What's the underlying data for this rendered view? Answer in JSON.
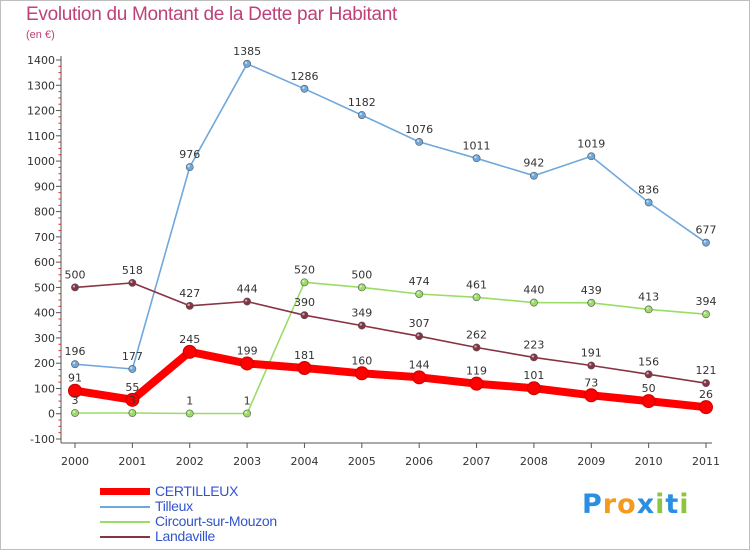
{
  "title": "Evolution du Montant de la Dette par Habitant",
  "subtitle": "(en €)",
  "logo": {
    "letters": [
      "P",
      "r",
      "o",
      "x",
      "i",
      "t",
      "i"
    ],
    "colors": [
      "#2a8fe0",
      "#f39a1f",
      "#f39a1f",
      "#2a8fe0",
      "#8cc63f",
      "#2a8fe0",
      "#8cc63f"
    ]
  },
  "chart_data": {
    "type": "line",
    "title": "Evolution du Montant de la Dette par Habitant",
    "subtitle": "(en €)",
    "xlabel": "",
    "ylabel": "",
    "x": [
      "2000",
      "2001",
      "2002",
      "2003",
      "2004",
      "2005",
      "2006",
      "2007",
      "2008",
      "2009",
      "2010",
      "2011"
    ],
    "ylim": [
      -100,
      1400
    ],
    "yticks": [
      "-100",
      "0",
      "100",
      "200",
      "300",
      "400",
      "500",
      "600",
      "700",
      "800",
      "900",
      "1000",
      "1100",
      "1200",
      "1300",
      "1400"
    ],
    "grid": false,
    "legend": "bottom-left",
    "series": [
      {
        "name": "CERTILLEUX",
        "color": "#ff0000",
        "values": [
          91,
          55,
          245,
          199,
          181,
          160,
          144,
          119,
          101,
          73,
          50,
          26
        ],
        "labels": [
          "91",
          "55",
          "245",
          "199",
          "181",
          "160",
          "144",
          "119",
          "101",
          "73",
          "50",
          "26"
        ]
      },
      {
        "name": "Tilleux",
        "color": "#6fa8dc",
        "values": [
          196,
          177,
          976,
          1385,
          1286,
          1182,
          1076,
          1011,
          942,
          1019,
          836,
          677
        ],
        "labels": [
          "196",
          "177",
          "976",
          "1385",
          "1286",
          "1182",
          "1076",
          "1011",
          "942",
          "1019",
          "836",
          "677"
        ]
      },
      {
        "name": "Circourt-sur-Mouzon",
        "color": "#99dd66",
        "values": [
          3,
          3,
          1,
          1,
          520,
          500,
          474,
          461,
          440,
          439,
          413,
          394
        ],
        "labels": [
          "3",
          "3",
          "1",
          "1",
          "520",
          "500",
          "474",
          "461",
          "440",
          "439",
          "413",
          "394"
        ]
      },
      {
        "name": "Landaville",
        "color": "#883344",
        "values": [
          500,
          518,
          427,
          444,
          390,
          349,
          307,
          262,
          223,
          191,
          156,
          121
        ],
        "labels": [
          "500",
          "518",
          "427",
          "444",
          "390",
          "349",
          "307",
          "262",
          "223",
          "191",
          "156",
          "121"
        ]
      }
    ]
  }
}
